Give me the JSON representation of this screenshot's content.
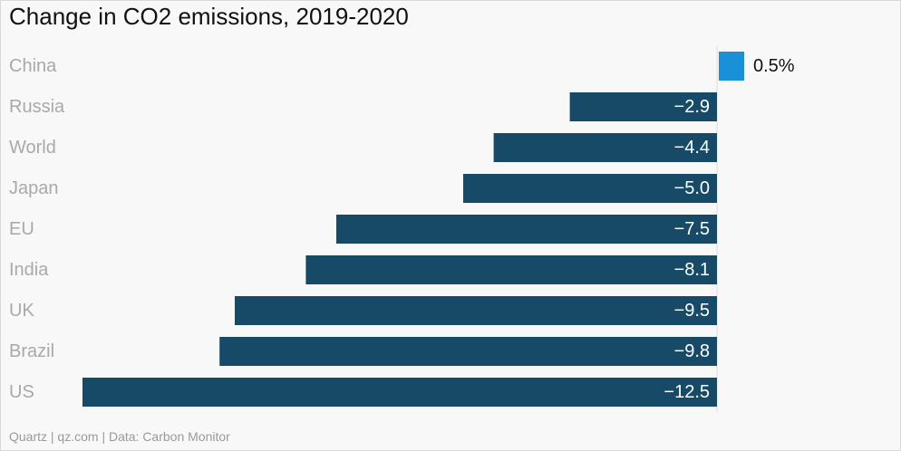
{
  "chart_data": {
    "type": "bar",
    "orientation": "horizontal",
    "title": "Change in CO2 emissions, 2019-2020",
    "xlabel": "",
    "ylabel": "",
    "categories": [
      "China",
      "Russia",
      "World",
      "Japan",
      "EU",
      "India",
      "UK",
      "Brazil",
      "US"
    ],
    "values": [
      0.5,
      -2.9,
      -4.4,
      -5.0,
      -7.5,
      -8.1,
      -9.5,
      -9.8,
      -12.5
    ],
    "value_labels": [
      "0.5%",
      "−2.9",
      "−4.4",
      "−5.0",
      "−7.5",
      "−8.1",
      "−9.5",
      "−9.8",
      "−12.5"
    ],
    "xlim": [
      -12.5,
      0.5
    ],
    "grid": false,
    "legend": "none",
    "colors": {
      "positive": "#1a90d9",
      "negative": "#174a67",
      "label_inside": "#ffffff",
      "label_outside": "#111111",
      "category_label": "#a9a9a9",
      "zero_line": "#dcdcdc"
    }
  },
  "footer": {
    "source": "Quartz | qz.com | Data: Carbon Monitor"
  }
}
